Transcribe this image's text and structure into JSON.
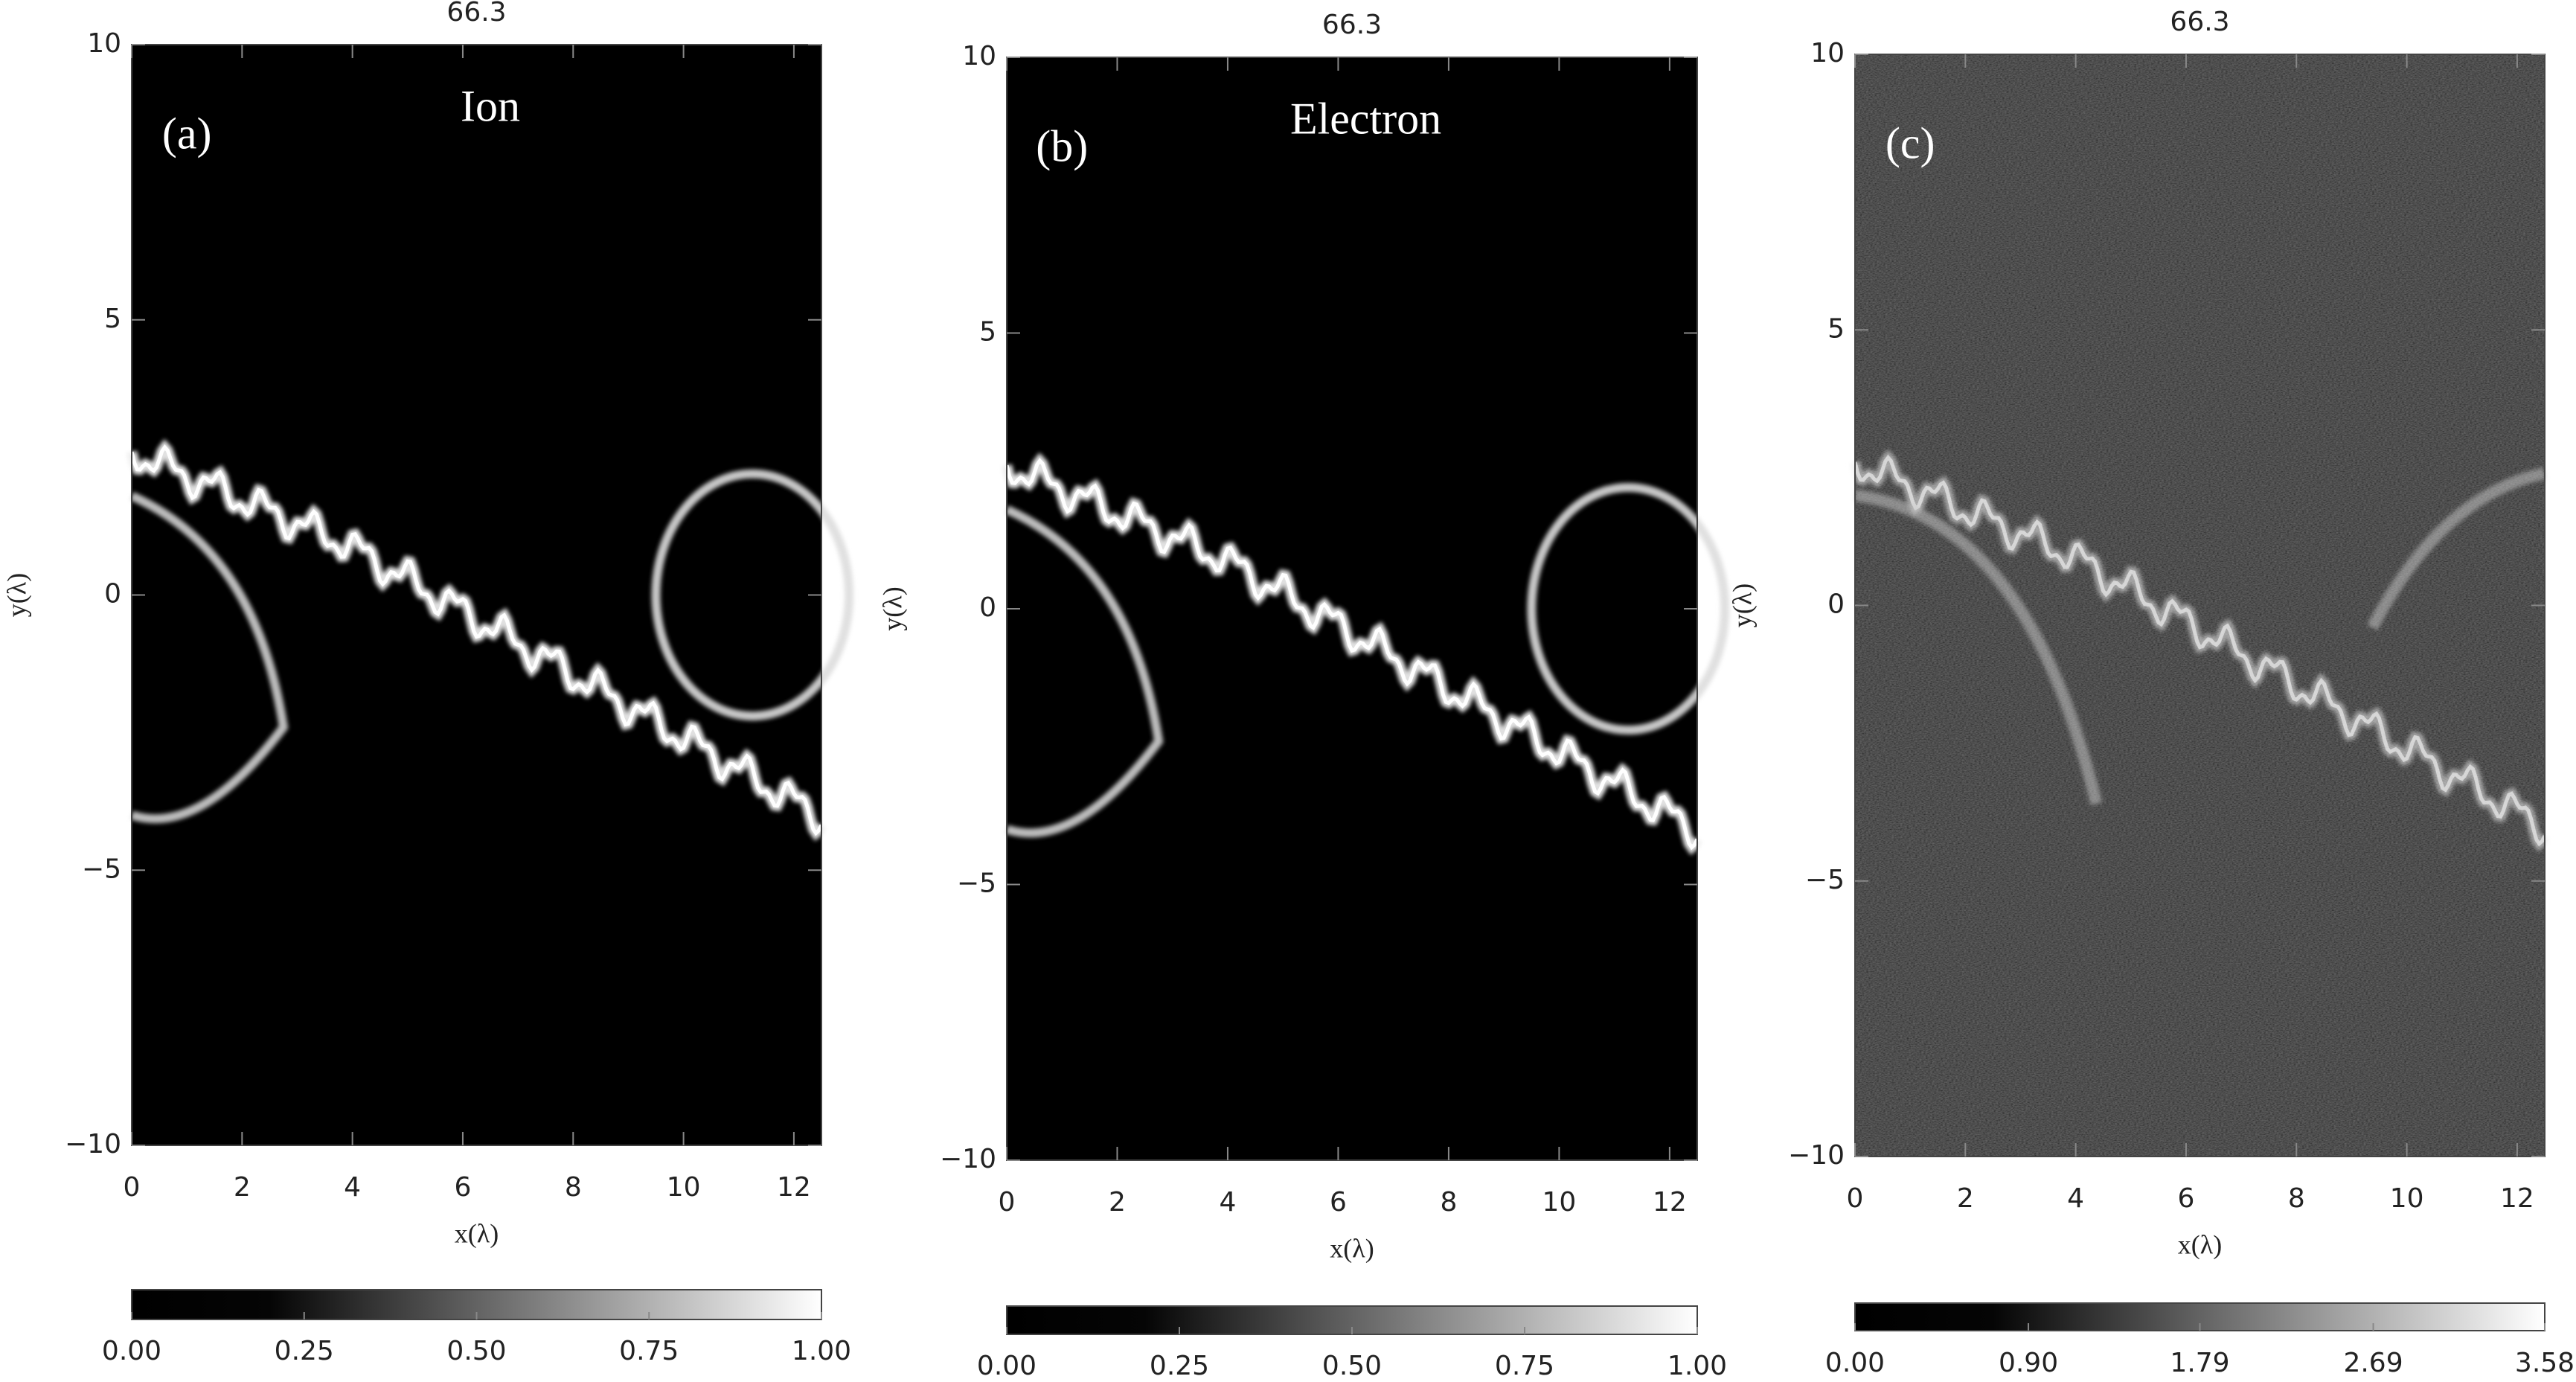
{
  "chart_data": [
    {
      "type": "heatmap",
      "title": "66.3",
      "panel_label": "(a)",
      "annotation": "Ion",
      "xlabel": "x(λ)",
      "ylabel": "y(λ)",
      "xlim": [
        0,
        12.5
      ],
      "ylim": [
        -10,
        10
      ],
      "xticks": [
        0,
        2,
        4,
        6,
        8,
        10,
        12
      ],
      "yticks": [
        {
          "value": -10,
          "label": "−10"
        },
        {
          "value": -5,
          "label": "−5"
        },
        0,
        5,
        10
      ],
      "colorbar": {
        "lim": [
          0,
          1
        ],
        "ticks": [
          {
            "value": 0,
            "label": "0.00"
          },
          {
            "value": 0.25,
            "label": "0.25"
          },
          {
            "value": 0.5,
            "label": "0.50"
          },
          {
            "value": 0.75,
            "label": "0.75"
          },
          {
            "value": 1,
            "label": "1.00"
          }
        ]
      }
    },
    {
      "type": "heatmap",
      "title": "66.3",
      "panel_label": "(b)",
      "annotation": "Electron",
      "xlabel": "x(λ)",
      "ylabel": "y(λ)",
      "xlim": [
        0,
        12.5
      ],
      "ylim": [
        -10,
        10
      ],
      "xticks": [
        0,
        2,
        4,
        6,
        8,
        10,
        12
      ],
      "yticks": [
        {
          "value": -10,
          "label": "−10"
        },
        {
          "value": -5,
          "label": "−5"
        },
        0,
        5,
        10
      ],
      "colorbar": {
        "lim": [
          0,
          1
        ],
        "ticks": [
          {
            "value": 0,
            "label": "0.00"
          },
          {
            "value": 0.25,
            "label": "0.25"
          },
          {
            "value": 0.5,
            "label": "0.50"
          },
          {
            "value": 0.75,
            "label": "0.75"
          },
          {
            "value": 1,
            "label": "1.00"
          }
        ]
      }
    },
    {
      "type": "heatmap",
      "title": "66.3",
      "panel_label": "(c)",
      "xlabel": "x(λ)",
      "ylabel": "y(λ)",
      "xlim": [
        0,
        12.5
      ],
      "ylim": [
        -10,
        10
      ],
      "xticks": [
        0,
        2,
        4,
        6,
        8,
        10,
        12
      ],
      "yticks": [
        {
          "value": -10,
          "label": "−10"
        },
        {
          "value": -5,
          "label": "−5"
        },
        0,
        5,
        10
      ],
      "colorbar": {
        "lim": [
          0,
          3.58
        ],
        "ticks": [
          {
            "value": 0,
            "label": "0.00"
          },
          {
            "value": 0.9,
            "label": "0.90"
          },
          {
            "value": 1.79,
            "label": "1.79"
          },
          {
            "value": 2.69,
            "label": "2.69"
          },
          {
            "value": 3.58,
            "label": "3.58"
          }
        ]
      }
    }
  ]
}
